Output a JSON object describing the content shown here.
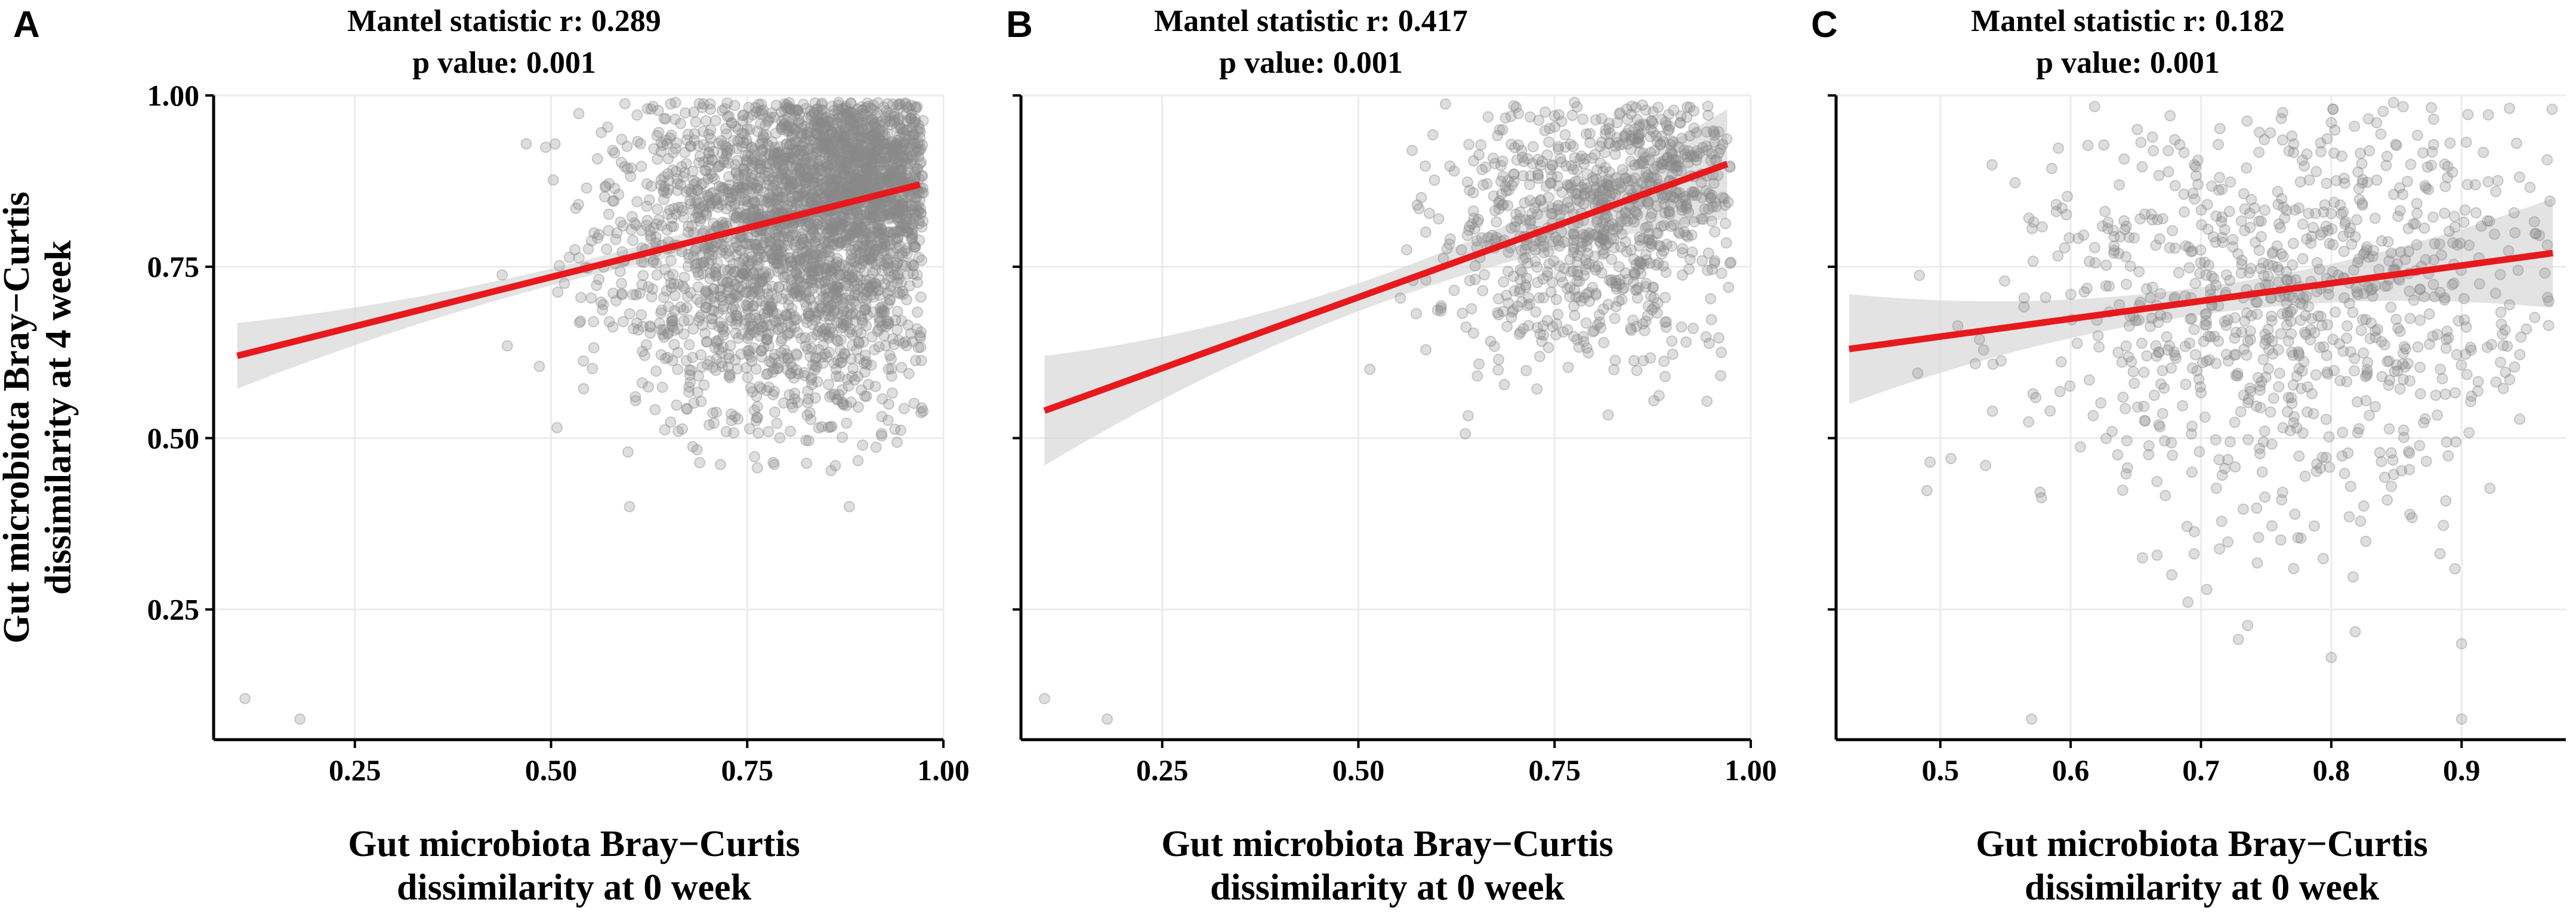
{
  "figure": {
    "y_axis_label_line1": "Gut microbiota Bray−Curtis",
    "y_axis_label_line2": "dissimilarity at 4 week"
  },
  "colors": {
    "points": "#8a8a8a",
    "fit_line": "#e8191c",
    "ci_band": "#d9d9d9",
    "grid": "#ececec",
    "axis": "#000000"
  },
  "chart_data": [
    {
      "panel": "A",
      "type": "scatter",
      "title_line1": "Mantel statistic r: 0.289",
      "title_line2": "p value: 0.001",
      "xlabel_line1": "Gut microbiota Bray−Curtis",
      "xlabel_line2": "dissimilarity at 0 week",
      "ylabel": "Gut microbiota Bray−Curtis dissimilarity at 4 week",
      "xlim": [
        0.07,
        1.0
      ],
      "ylim": [
        0.06,
        1.0
      ],
      "xticks": [
        0.25,
        0.5,
        0.75,
        1.0
      ],
      "xtick_labels": [
        "0.25",
        "0.50",
        "0.75",
        "1.00"
      ],
      "yticks": [
        0.25,
        0.5,
        0.75,
        1.0
      ],
      "ytick_labels": [
        "0.25",
        "0.50",
        "0.75",
        "1.00"
      ],
      "show_y_tick_labels": true,
      "fit": {
        "x": [
          0.1,
          0.97
        ],
        "y": [
          0.62,
          0.87
        ],
        "ci": 0.012
      },
      "outliers": [
        [
          0.11,
          0.12
        ],
        [
          0.18,
          0.09
        ],
        [
          0.6,
          0.4
        ],
        [
          0.88,
          0.4
        ]
      ],
      "point_clusters": [
        {
          "n": 2200,
          "xmean": 0.82,
          "xsd": 0.12,
          "ymean": 0.8,
          "ysd": 0.14,
          "xmin": 0.4,
          "xmax": 0.975,
          "ymin": 0.45,
          "ymax": 0.99
        },
        {
          "n": 900,
          "xmean": 0.9,
          "xsd": 0.06,
          "ymean": 0.9,
          "ysd": 0.07,
          "xmin": 0.6,
          "xmax": 0.975,
          "ymin": 0.7,
          "ymax": 0.99
        }
      ]
    },
    {
      "panel": "B",
      "type": "scatter",
      "title_line1": "Mantel statistic r: 0.417",
      "title_line2": "p value: 0.001",
      "xlabel_line1": "Gut microbiota Bray−Curtis",
      "xlabel_line2": "dissimilarity at 0 week",
      "xlim": [
        0.07,
        1.0
      ],
      "ylim": [
        0.06,
        1.0
      ],
      "xticks": [
        0.25,
        0.5,
        0.75,
        1.0
      ],
      "xtick_labels": [
        "0.25",
        "0.50",
        "0.75",
        "1.00"
      ],
      "yticks": [
        0.25,
        0.5,
        0.75,
        1.0
      ],
      "ytick_labels": [],
      "show_y_tick_labels": false,
      "fit": {
        "x": [
          0.1,
          0.97
        ],
        "y": [
          0.54,
          0.9
        ],
        "ci": 0.02
      },
      "outliers": [
        [
          0.1,
          0.12
        ],
        [
          0.18,
          0.09
        ]
      ],
      "point_clusters": [
        {
          "n": 700,
          "xmean": 0.8,
          "xsd": 0.1,
          "ymean": 0.8,
          "ysd": 0.1,
          "xmin": 0.5,
          "xmax": 0.975,
          "ymin": 0.45,
          "ymax": 0.99
        },
        {
          "n": 200,
          "xmean": 0.88,
          "xsd": 0.06,
          "ymean": 0.9,
          "ysd": 0.06,
          "xmin": 0.6,
          "xmax": 0.975,
          "ymin": 0.7,
          "ymax": 0.99
        }
      ]
    },
    {
      "panel": "C",
      "type": "scatter",
      "title_line1": "Mantel statistic r: 0.182",
      "title_line2": "p value: 0.001",
      "xlabel_line1": "Gut microbiota Bray−Curtis",
      "xlabel_line2": "dissimilarity at 0 week",
      "xlim": [
        0.42,
        0.98
      ],
      "ylim": [
        0.06,
        1.0
      ],
      "xticks": [
        0.5,
        0.6,
        0.7,
        0.8,
        0.9
      ],
      "xtick_labels": [
        "0.5",
        "0.6",
        "0.7",
        "0.8",
        "0.9"
      ],
      "yticks": [
        0.25,
        0.5,
        0.75,
        1.0
      ],
      "ytick_labels": [],
      "show_y_tick_labels": false,
      "fit": {
        "x": [
          0.43,
          0.97
        ],
        "y": [
          0.63,
          0.77
        ],
        "ci": 0.02
      },
      "outliers": [
        [
          0.57,
          0.09
        ],
        [
          0.9,
          0.09
        ],
        [
          0.8,
          0.18
        ],
        [
          0.9,
          0.2
        ]
      ],
      "point_clusters": [
        {
          "n": 900,
          "xmean": 0.77,
          "xsd": 0.11,
          "ymean": 0.7,
          "ysd": 0.17,
          "xmin": 0.43,
          "xmax": 0.97,
          "ymin": 0.2,
          "ymax": 0.99
        }
      ]
    }
  ]
}
